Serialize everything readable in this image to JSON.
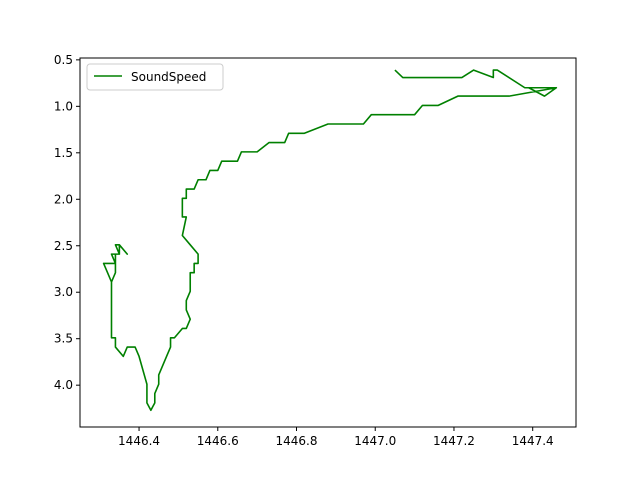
{
  "chart_data": {
    "type": "line",
    "title": "",
    "xlabel": "",
    "ylabel": "",
    "xlim": [
      1446.25,
      1447.51
    ],
    "ylim": [
      4.45,
      0.48
    ],
    "y_inverted": true,
    "grid": false,
    "legend": {
      "placement": "top-left",
      "entries": [
        "SoundSpeed"
      ]
    },
    "xticks": [
      1446.4,
      1446.6,
      1446.8,
      1447.0,
      1447.2,
      1447.4
    ],
    "xtick_labels": [
      "1446.4",
      "1446.6",
      "1446.8",
      "1447.0",
      "1447.2",
      "1447.4"
    ],
    "yticks": [
      0.5,
      1.0,
      1.5,
      2.0,
      2.5,
      3.0,
      3.5,
      4.0
    ],
    "ytick_labels": [
      "0.5",
      "1.0",
      "1.5",
      "2.0",
      "2.5",
      "3.0",
      "3.5",
      "4.0"
    ],
    "series": [
      {
        "name": "SoundSpeed",
        "color": "#008000",
        "x": [
          1447.05,
          1447.07,
          1447.14,
          1447.07,
          1447.22,
          1447.25,
          1447.3,
          1447.3,
          1447.31,
          1447.38,
          1447.46,
          1447.39,
          1447.43,
          1447.46,
          1447.34,
          1447.21,
          1447.16,
          1447.12,
          1447.1,
          1446.99,
          1446.97,
          1446.89,
          1446.88,
          1446.82,
          1446.78,
          1446.77,
          1446.73,
          1446.7,
          1446.66,
          1446.65,
          1446.61,
          1446.6,
          1446.58,
          1446.57,
          1446.55,
          1446.54,
          1446.52,
          1446.52,
          1446.51,
          1446.51,
          1446.52,
          1446.51,
          1446.53,
          1446.55,
          1446.55,
          1446.54,
          1446.54,
          1446.53,
          1446.53,
          1446.52,
          1446.52,
          1446.53,
          1446.52,
          1446.51,
          1446.51,
          1446.49,
          1446.48,
          1446.48,
          1446.47,
          1446.47,
          1446.45,
          1446.45,
          1446.44,
          1446.44,
          1446.43,
          1446.42,
          1446.42,
          1446.4,
          1446.39,
          1446.38,
          1446.37,
          1446.36,
          1446.34,
          1446.34,
          1446.33,
          1446.33,
          1446.33,
          1446.33,
          1446.32,
          1446.31,
          1446.34,
          1446.33,
          1446.35,
          1446.35,
          1446.37,
          1446.35,
          1446.34,
          1446.35,
          1446.34,
          1446.34,
          1446.34,
          1446.33
        ]
      }
    ],
    "series_y": [
      0.61,
      0.69,
      0.69,
      0.69,
      0.69,
      0.61,
      0.69,
      0.61,
      0.61,
      0.8,
      0.8,
      0.8,
      0.89,
      0.8,
      0.89,
      0.89,
      0.99,
      0.99,
      1.09,
      1.09,
      1.19,
      1.19,
      1.19,
      1.29,
      1.29,
      1.39,
      1.39,
      1.49,
      1.49,
      1.59,
      1.59,
      1.69,
      1.69,
      1.79,
      1.79,
      1.89,
      1.89,
      1.99,
      1.99,
      2.19,
      2.19,
      2.39,
      2.49,
      2.59,
      2.69,
      2.69,
      2.79,
      2.79,
      2.99,
      3.09,
      3.19,
      3.29,
      3.39,
      3.39,
      3.39,
      3.49,
      3.49,
      3.59,
      3.69,
      3.69,
      3.89,
      3.99,
      4.09,
      4.19,
      4.27,
      4.19,
      3.99,
      3.69,
      3.59,
      3.59,
      3.59,
      3.69,
      3.59,
      3.49,
      3.49,
      3.39,
      3.19,
      2.89,
      2.79,
      2.69,
      2.69,
      2.59,
      2.59,
      2.49,
      2.59,
      2.49,
      2.49,
      2.59,
      2.59,
      2.69,
      2.79,
      2.89
    ]
  }
}
